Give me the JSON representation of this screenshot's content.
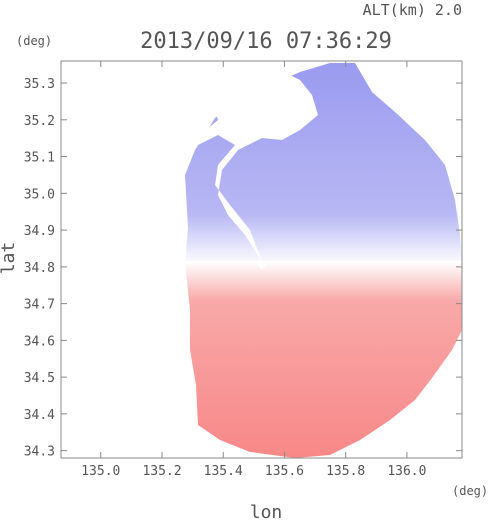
{
  "chart_data": {
    "type": "heatmap",
    "title": "2013/09/16 07:36:29",
    "subtitle": "ALT(km) 2.0",
    "xlabel": "lon",
    "ylabel": "lat",
    "x_unit": "(deg)",
    "y_unit": "(deg)",
    "xlim": [
      134.87,
      136.18
    ],
    "ylim": [
      34.28,
      35.36
    ],
    "x_ticks": [
      "135.0",
      "135.2",
      "135.4",
      "135.6",
      "135.8",
      "136.0"
    ],
    "y_ticks": [
      "35.3",
      "35.2",
      "35.1",
      "35.0",
      "34.9",
      "34.8",
      "34.7",
      "34.6",
      "34.5",
      "34.4",
      "34.3"
    ],
    "radar_center": [
      135.53,
      34.82
    ],
    "colors": {
      "toward": "#8c8cf0",
      "away": "#f87878",
      "neutral": "#ffffff",
      "axis": "#888888"
    },
    "grid": false
  }
}
